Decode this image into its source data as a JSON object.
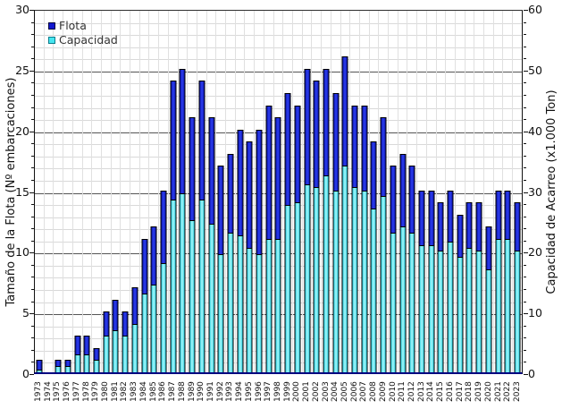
{
  "legend": {
    "flota": "Flota",
    "capacidad": "Capacidad"
  },
  "colors": {
    "flota": "#1118cf",
    "capacidad": "#45e6f0",
    "bar_border": "#000000",
    "axis_line": "#000080",
    "major_grid": "#555555",
    "minor_grid": "#d9d9d9"
  },
  "chart_data": {
    "type": "bar",
    "title": "",
    "left_axis": {
      "label": "Tamaño de la Flota (Nº embarcaciones)",
      "range": [
        0,
        30
      ],
      "major_step": 5,
      "minor_step": 1,
      "ticks": [
        0,
        5,
        10,
        15,
        20,
        25,
        30
      ]
    },
    "right_axis": {
      "label": "Capacidad de Acarreo (x1.000 Ton)",
      "range": [
        0,
        60
      ],
      "major_step": 10,
      "ticks": [
        0,
        10,
        20,
        30,
        40,
        50,
        60
      ]
    },
    "grid": true,
    "legend_position": "top-left",
    "categories": [
      1973,
      1974,
      1975,
      1976,
      1977,
      1978,
      1979,
      1980,
      1981,
      1982,
      1983,
      1984,
      1985,
      1986,
      1987,
      1988,
      1989,
      1990,
      1991,
      1992,
      1993,
      1994,
      1995,
      1996,
      1997,
      1998,
      1999,
      2000,
      2001,
      2002,
      2003,
      2004,
      2005,
      2006,
      2007,
      2008,
      2009,
      2010,
      2011,
      2012,
      2013,
      2014,
      2015,
      2016,
      2017,
      2018,
      2019,
      2020,
      2021,
      2022,
      2023
    ],
    "series": [
      {
        "name": "Flota",
        "axis": "left",
        "units": "embarcaciones",
        "values": [
          1,
          0,
          1,
          1,
          3,
          3,
          2,
          5,
          6,
          5,
          7,
          11,
          12,
          15,
          24,
          25,
          21,
          24,
          21,
          17,
          18,
          20,
          19,
          20,
          22,
          21,
          23,
          22,
          25,
          24,
          25,
          23,
          26,
          22,
          22,
          19,
          21,
          17,
          18,
          17,
          15,
          15,
          14,
          15,
          13,
          14,
          14,
          12,
          15,
          15,
          14
        ]
      },
      {
        "name": "Capacidad",
        "axis": "right",
        "units": "x1.000 Ton",
        "values": [
          0.5,
          0,
          1,
          1,
          3,
          3,
          2,
          6,
          7,
          6,
          8,
          13,
          14.5,
          18,
          28.5,
          29.5,
          25,
          28.5,
          24.5,
          19.5,
          23,
          22.5,
          20.5,
          19.5,
          22,
          22,
          27.5,
          28,
          31,
          30.5,
          32.5,
          30,
          34,
          30.5,
          30,
          27,
          29,
          23,
          24,
          23,
          21,
          21,
          20,
          21.5,
          19,
          20.5,
          20,
          17,
          22,
          22,
          20
        ]
      }
    ]
  }
}
